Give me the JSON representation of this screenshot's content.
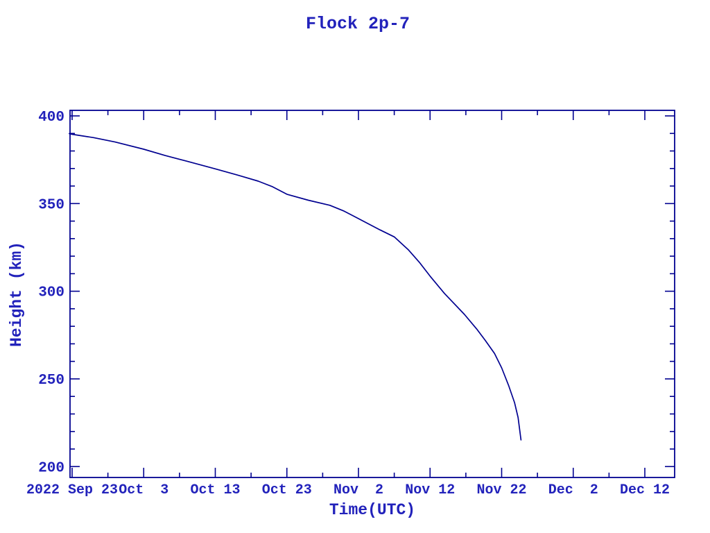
{
  "window": {
    "background": "#ffffff"
  },
  "colors": {
    "line": "#000090",
    "text": "#2222bb",
    "background": "#ffffff"
  },
  "chart_data": {
    "type": "line",
    "title": "Flock 2p-7",
    "xlabel": "Time(UTC)",
    "ylabel": "Height (km)",
    "legend": "none",
    "grid": "off",
    "frame": "box with inward ticks on all four sides",
    "x_epoch": "2022-09-23",
    "x_unit": "days since 2022 Sep 23",
    "xlim_days": [
      -0.4,
      84.2
    ],
    "ylim": [
      193.6,
      403.3
    ],
    "x_tick_days": [
      0,
      10,
      20,
      30,
      40,
      50,
      60,
      70,
      80
    ],
    "x_tick_labels": [
      "2022 Sep 23",
      "Oct  3",
      "Oct 13",
      "Oct 23",
      "Nov  2",
      "Nov 12",
      "Nov 22",
      "Dec  2",
      "Dec 12"
    ],
    "x_minor_tick_days": [
      5,
      15,
      25,
      35,
      45,
      55,
      65,
      75
    ],
    "y_major_ticks": [
      200,
      250,
      300,
      350,
      400
    ],
    "y_tick_labels": [
      "200",
      "250",
      "300",
      "350",
      "400"
    ],
    "y_minor_step": 10,
    "series": [
      {
        "name": "Flock 2p-7 orbital height",
        "color": "#000090",
        "points_day_height": [
          [
            -0.4,
            389.9
          ],
          [
            0,
            389.5
          ],
          [
            3,
            387.6
          ],
          [
            6,
            385.1
          ],
          [
            10,
            381.0
          ],
          [
            13,
            377.4
          ],
          [
            16,
            374.2
          ],
          [
            20,
            369.8
          ],
          [
            23,
            366.4
          ],
          [
            26,
            362.8
          ],
          [
            28,
            359.6
          ],
          [
            30,
            355.3
          ],
          [
            33,
            351.9
          ],
          [
            36,
            349.0
          ],
          [
            38,
            345.7
          ],
          [
            40,
            341.4
          ],
          [
            43,
            335.0
          ],
          [
            45,
            331.0
          ],
          [
            47,
            323.5
          ],
          [
            48.5,
            316.5
          ],
          [
            50,
            308.6
          ],
          [
            52,
            298.8
          ],
          [
            54.8,
            286.8
          ],
          [
            56.5,
            278.5
          ],
          [
            57.7,
            272.0
          ],
          [
            59,
            264.5
          ],
          [
            60,
            256.3
          ],
          [
            61,
            246.0
          ],
          [
            61.8,
            236.5
          ],
          [
            62.3,
            228.0
          ],
          [
            62.7,
            215.2
          ]
        ]
      }
    ]
  }
}
